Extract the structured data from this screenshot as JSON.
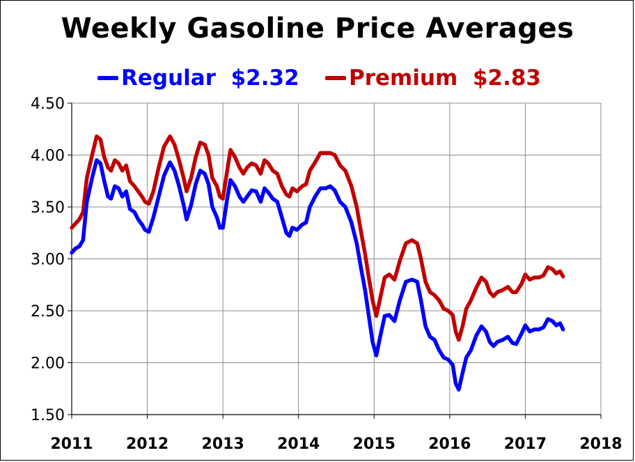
{
  "chart_data": {
    "type": "line",
    "title": "Weekly Gasoline  Price Averages",
    "xlabel": "",
    "ylabel": "",
    "xlim": [
      2011,
      2018
    ],
    "ylim": [
      1.5,
      4.5
    ],
    "x_ticks": [
      "2011",
      "2012",
      "2013",
      "2014",
      "2015",
      "2016",
      "2017",
      "2018"
    ],
    "y_ticks": [
      "1.50",
      "2.00",
      "2.50",
      "3.00",
      "3.50",
      "4.00",
      "4.50"
    ],
    "grid": true,
    "legend_position": "top-center",
    "series": [
      {
        "name": "Regular",
        "legend_value": "$2.32",
        "color": "#0000FF",
        "points": [
          [
            2011.0,
            3.06
          ],
          [
            2011.05,
            3.1
          ],
          [
            2011.1,
            3.12
          ],
          [
            2011.15,
            3.18
          ],
          [
            2011.2,
            3.55
          ],
          [
            2011.27,
            3.78
          ],
          [
            2011.33,
            3.95
          ],
          [
            2011.38,
            3.92
          ],
          [
            2011.43,
            3.75
          ],
          [
            2011.48,
            3.6
          ],
          [
            2011.52,
            3.58
          ],
          [
            2011.57,
            3.7
          ],
          [
            2011.62,
            3.68
          ],
          [
            2011.67,
            3.6
          ],
          [
            2011.72,
            3.65
          ],
          [
            2011.77,
            3.48
          ],
          [
            2011.83,
            3.45
          ],
          [
            2011.88,
            3.38
          ],
          [
            2011.93,
            3.33
          ],
          [
            2011.97,
            3.28
          ],
          [
            2012.02,
            3.26
          ],
          [
            2012.08,
            3.4
          ],
          [
            2012.15,
            3.6
          ],
          [
            2012.22,
            3.8
          ],
          [
            2012.3,
            3.93
          ],
          [
            2012.36,
            3.85
          ],
          [
            2012.42,
            3.7
          ],
          [
            2012.48,
            3.52
          ],
          [
            2012.52,
            3.38
          ],
          [
            2012.58,
            3.52
          ],
          [
            2012.64,
            3.72
          ],
          [
            2012.7,
            3.85
          ],
          [
            2012.76,
            3.82
          ],
          [
            2012.81,
            3.72
          ],
          [
            2012.86,
            3.5
          ],
          [
            2012.92,
            3.4
          ],
          [
            2012.96,
            3.3
          ],
          [
            2013.0,
            3.3
          ],
          [
            2013.05,
            3.55
          ],
          [
            2013.1,
            3.76
          ],
          [
            2013.16,
            3.7
          ],
          [
            2013.22,
            3.6
          ],
          [
            2013.27,
            3.55
          ],
          [
            2013.32,
            3.6
          ],
          [
            2013.38,
            3.66
          ],
          [
            2013.44,
            3.65
          ],
          [
            2013.5,
            3.55
          ],
          [
            2013.55,
            3.68
          ],
          [
            2013.6,
            3.64
          ],
          [
            2013.66,
            3.58
          ],
          [
            2013.72,
            3.55
          ],
          [
            2013.78,
            3.4
          ],
          [
            2013.84,
            3.25
          ],
          [
            2013.88,
            3.22
          ],
          [
            2013.92,
            3.3
          ],
          [
            2013.98,
            3.28
          ],
          [
            2014.05,
            3.33
          ],
          [
            2014.1,
            3.35
          ],
          [
            2014.15,
            3.5
          ],
          [
            2014.22,
            3.6
          ],
          [
            2014.29,
            3.68
          ],
          [
            2014.36,
            3.68
          ],
          [
            2014.42,
            3.7
          ],
          [
            2014.48,
            3.66
          ],
          [
            2014.55,
            3.55
          ],
          [
            2014.62,
            3.5
          ],
          [
            2014.7,
            3.35
          ],
          [
            2014.77,
            3.15
          ],
          [
            2014.83,
            2.9
          ],
          [
            2014.88,
            2.7
          ],
          [
            2014.93,
            2.45
          ],
          [
            2014.98,
            2.2
          ],
          [
            2015.03,
            2.07
          ],
          [
            2015.08,
            2.25
          ],
          [
            2015.14,
            2.45
          ],
          [
            2015.2,
            2.46
          ],
          [
            2015.27,
            2.4
          ],
          [
            2015.34,
            2.6
          ],
          [
            2015.42,
            2.78
          ],
          [
            2015.5,
            2.8
          ],
          [
            2015.57,
            2.78
          ],
          [
            2015.62,
            2.6
          ],
          [
            2015.68,
            2.35
          ],
          [
            2015.74,
            2.25
          ],
          [
            2015.8,
            2.22
          ],
          [
            2015.86,
            2.12
          ],
          [
            2015.92,
            2.05
          ],
          [
            2015.98,
            2.03
          ],
          [
            2016.04,
            1.98
          ],
          [
            2016.08,
            1.8
          ],
          [
            2016.12,
            1.74
          ],
          [
            2016.17,
            1.9
          ],
          [
            2016.22,
            2.05
          ],
          [
            2016.28,
            2.12
          ],
          [
            2016.35,
            2.26
          ],
          [
            2016.42,
            2.35
          ],
          [
            2016.48,
            2.3
          ],
          [
            2016.53,
            2.2
          ],
          [
            2016.58,
            2.16
          ],
          [
            2016.63,
            2.2
          ],
          [
            2016.7,
            2.22
          ],
          [
            2016.77,
            2.25
          ],
          [
            2016.83,
            2.19
          ],
          [
            2016.88,
            2.18
          ],
          [
            2016.95,
            2.28
          ],
          [
            2017.0,
            2.36
          ],
          [
            2017.06,
            2.3
          ],
          [
            2017.12,
            2.32
          ],
          [
            2017.18,
            2.32
          ],
          [
            2017.24,
            2.34
          ],
          [
            2017.3,
            2.42
          ],
          [
            2017.36,
            2.4
          ],
          [
            2017.41,
            2.36
          ],
          [
            2017.46,
            2.38
          ],
          [
            2017.5,
            2.32
          ]
        ]
      },
      {
        "name": "Premium",
        "legend_value": "$2.83",
        "color": "#C00000",
        "points": [
          [
            2011.0,
            3.3
          ],
          [
            2011.05,
            3.34
          ],
          [
            2011.1,
            3.38
          ],
          [
            2011.15,
            3.45
          ],
          [
            2011.2,
            3.78
          ],
          [
            2011.27,
            4.0
          ],
          [
            2011.33,
            4.18
          ],
          [
            2011.38,
            4.15
          ],
          [
            2011.43,
            3.98
          ],
          [
            2011.48,
            3.88
          ],
          [
            2011.52,
            3.85
          ],
          [
            2011.57,
            3.95
          ],
          [
            2011.62,
            3.92
          ],
          [
            2011.67,
            3.85
          ],
          [
            2011.72,
            3.9
          ],
          [
            2011.77,
            3.75
          ],
          [
            2011.83,
            3.7
          ],
          [
            2011.88,
            3.65
          ],
          [
            2011.93,
            3.6
          ],
          [
            2011.97,
            3.55
          ],
          [
            2012.02,
            3.53
          ],
          [
            2012.08,
            3.65
          ],
          [
            2012.15,
            3.88
          ],
          [
            2012.22,
            4.08
          ],
          [
            2012.3,
            4.18
          ],
          [
            2012.36,
            4.1
          ],
          [
            2012.42,
            3.95
          ],
          [
            2012.48,
            3.78
          ],
          [
            2012.52,
            3.65
          ],
          [
            2012.58,
            3.78
          ],
          [
            2012.64,
            3.98
          ],
          [
            2012.7,
            4.12
          ],
          [
            2012.76,
            4.1
          ],
          [
            2012.81,
            4.0
          ],
          [
            2012.86,
            3.78
          ],
          [
            2012.92,
            3.7
          ],
          [
            2012.96,
            3.6
          ],
          [
            2013.0,
            3.58
          ],
          [
            2013.05,
            3.82
          ],
          [
            2013.1,
            4.05
          ],
          [
            2013.16,
            3.98
          ],
          [
            2013.22,
            3.88
          ],
          [
            2013.27,
            3.82
          ],
          [
            2013.32,
            3.88
          ],
          [
            2013.38,
            3.92
          ],
          [
            2013.44,
            3.9
          ],
          [
            2013.5,
            3.82
          ],
          [
            2013.55,
            3.95
          ],
          [
            2013.6,
            3.92
          ],
          [
            2013.66,
            3.85
          ],
          [
            2013.72,
            3.82
          ],
          [
            2013.78,
            3.7
          ],
          [
            2013.84,
            3.62
          ],
          [
            2013.88,
            3.6
          ],
          [
            2013.92,
            3.68
          ],
          [
            2013.98,
            3.65
          ],
          [
            2014.05,
            3.7
          ],
          [
            2014.1,
            3.72
          ],
          [
            2014.15,
            3.85
          ],
          [
            2014.22,
            3.93
          ],
          [
            2014.29,
            4.02
          ],
          [
            2014.36,
            4.02
          ],
          [
            2014.42,
            4.02
          ],
          [
            2014.48,
            4.0
          ],
          [
            2014.55,
            3.9
          ],
          [
            2014.62,
            3.85
          ],
          [
            2014.7,
            3.7
          ],
          [
            2014.77,
            3.5
          ],
          [
            2014.83,
            3.25
          ],
          [
            2014.88,
            3.05
          ],
          [
            2014.93,
            2.82
          ],
          [
            2014.98,
            2.6
          ],
          [
            2015.03,
            2.45
          ],
          [
            2015.08,
            2.62
          ],
          [
            2015.14,
            2.82
          ],
          [
            2015.2,
            2.85
          ],
          [
            2015.27,
            2.8
          ],
          [
            2015.34,
            2.98
          ],
          [
            2015.42,
            3.15
          ],
          [
            2015.5,
            3.18
          ],
          [
            2015.57,
            3.15
          ],
          [
            2015.62,
            3.0
          ],
          [
            2015.68,
            2.78
          ],
          [
            2015.74,
            2.68
          ],
          [
            2015.8,
            2.65
          ],
          [
            2015.86,
            2.6
          ],
          [
            2015.92,
            2.52
          ],
          [
            2015.98,
            2.5
          ],
          [
            2016.04,
            2.46
          ],
          [
            2016.08,
            2.3
          ],
          [
            2016.12,
            2.22
          ],
          [
            2016.17,
            2.35
          ],
          [
            2016.22,
            2.52
          ],
          [
            2016.28,
            2.6
          ],
          [
            2016.35,
            2.72
          ],
          [
            2016.42,
            2.82
          ],
          [
            2016.48,
            2.78
          ],
          [
            2016.53,
            2.68
          ],
          [
            2016.58,
            2.64
          ],
          [
            2016.63,
            2.68
          ],
          [
            2016.7,
            2.7
          ],
          [
            2016.77,
            2.73
          ],
          [
            2016.83,
            2.68
          ],
          [
            2016.88,
            2.68
          ],
          [
            2016.95,
            2.76
          ],
          [
            2017.0,
            2.85
          ],
          [
            2017.06,
            2.8
          ],
          [
            2017.12,
            2.82
          ],
          [
            2017.18,
            2.82
          ],
          [
            2017.24,
            2.84
          ],
          [
            2017.3,
            2.92
          ],
          [
            2017.36,
            2.9
          ],
          [
            2017.41,
            2.86
          ],
          [
            2017.46,
            2.88
          ],
          [
            2017.5,
            2.83
          ]
        ]
      }
    ]
  }
}
